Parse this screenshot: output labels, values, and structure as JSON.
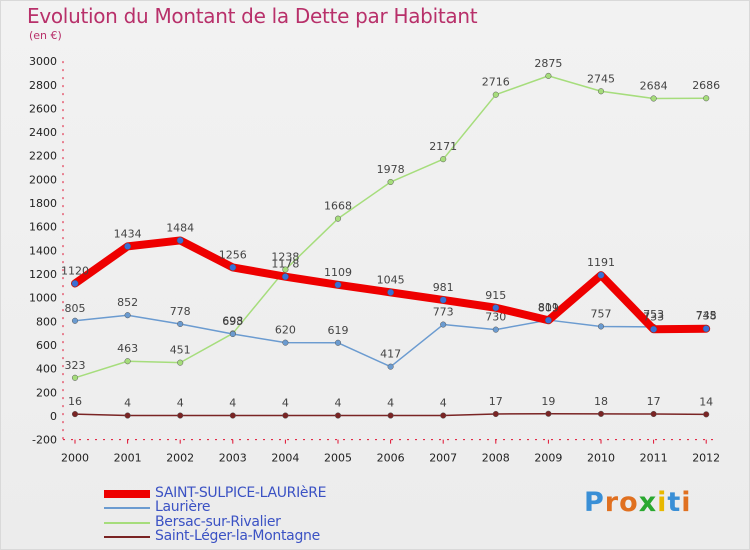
{
  "title": "Evolution du Montant de la Dette par Habitant",
  "unit": "(en €)",
  "brand": {
    "letters": [
      "P",
      "r",
      "o",
      "x",
      "i",
      "t",
      "i"
    ],
    "colors": [
      "#3a8fd6",
      "#e07020",
      "#e07020",
      "#2aa830",
      "#e8b800",
      "#3a8fd6",
      "#e07020"
    ]
  },
  "chart_data": {
    "type": "line",
    "x": [
      "2000",
      "2001",
      "2002",
      "2003",
      "2004",
      "2005",
      "2006",
      "2007",
      "2008",
      "2009",
      "2010",
      "2011",
      "2012"
    ],
    "ylim": [
      -200,
      3000
    ],
    "yticks": [
      -200,
      0,
      200,
      400,
      600,
      800,
      1000,
      1200,
      1400,
      1600,
      1800,
      2000,
      2200,
      2400,
      2600,
      2800,
      3000
    ],
    "grid": false,
    "legend_position": "bottom-left",
    "series": [
      {
        "name": "Saint-Léger-la-Montagne",
        "color": "#7a2424",
        "width": 1.5,
        "values": [
          16,
          4,
          4,
          4,
          4,
          4,
          4,
          4,
          17,
          19,
          18,
          17,
          14
        ]
      },
      {
        "name": "Bersac-sur-Rivalier",
        "color": "#a6dd7c",
        "width": 1.5,
        "values": [
          323,
          463,
          451,
          698,
          1238,
          1668,
          1978,
          2171,
          2716,
          2875,
          2745,
          2684,
          2686
        ]
      },
      {
        "name": "Laurière",
        "color": "#6b9bd0",
        "width": 1.5,
        "values": [
          805,
          852,
          778,
          693,
          620,
          619,
          417,
          773,
          730,
          811,
          757,
          753,
          745
        ]
      },
      {
        "name": "SAINT-SULPICE-LAURIèRE",
        "color": "#ee0000",
        "width": 8,
        "values": [
          1120,
          1434,
          1484,
          1256,
          1178,
          1109,
          1045,
          981,
          915,
          809,
          1191,
          733,
          738
        ]
      }
    ],
    "legend_order": [
      "SAINT-SULPICE-LAURIèRE",
      "Laurière",
      "Bersac-sur-Rivalier",
      "Saint-Léger-la-Montagne"
    ]
  }
}
